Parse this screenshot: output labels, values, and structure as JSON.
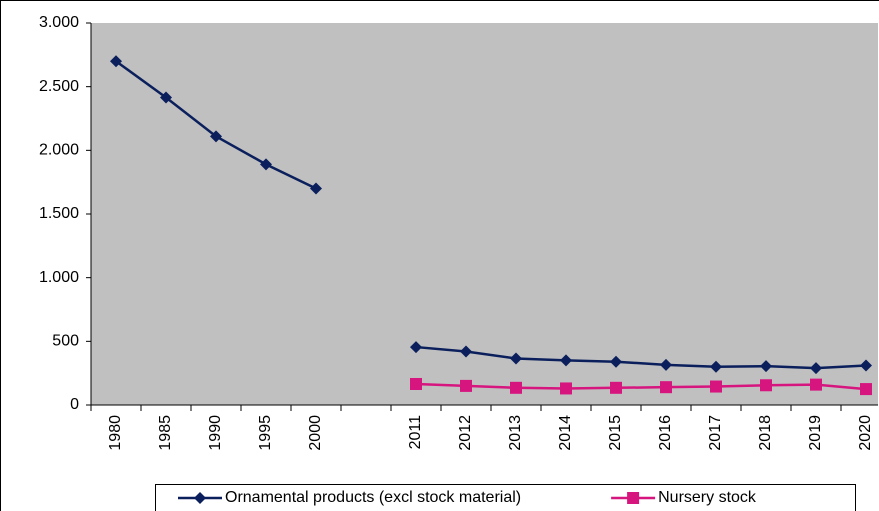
{
  "chart_data": {
    "type": "line",
    "categories": [
      "1980",
      "1985",
      "1990",
      "1995",
      "2000",
      null,
      "2011",
      "2012",
      "2013",
      "2014",
      "2015",
      "2016",
      "2017",
      "2018",
      "2019",
      "2020"
    ],
    "series": [
      {
        "name": "Ornamental products (excl stock material)",
        "color": "#0a1f5c",
        "marker": "diamond",
        "values": [
          2700,
          2415,
          2110,
          1890,
          1700,
          null,
          455,
          420,
          365,
          350,
          340,
          315,
          300,
          305,
          290,
          310
        ]
      },
      {
        "name": "Nursery stock",
        "color": "#d6157f",
        "marker": "square",
        "values": [
          null,
          null,
          null,
          null,
          null,
          null,
          165,
          150,
          135,
          130,
          135,
          140,
          145,
          155,
          160,
          125
        ]
      }
    ],
    "ylim": [
      0,
      3000
    ],
    "yticks": [
      0,
      500,
      {
        "value": 1000,
        "label": "1.000"
      },
      {
        "value": 1500,
        "label": "1.500"
      },
      {
        "value": 2000,
        "label": "2.000"
      },
      {
        "value": 2500,
        "label": "2.500"
      },
      {
        "value": 3000,
        "label": "3.000"
      }
    ],
    "plot_background": "#c0c0c0"
  }
}
